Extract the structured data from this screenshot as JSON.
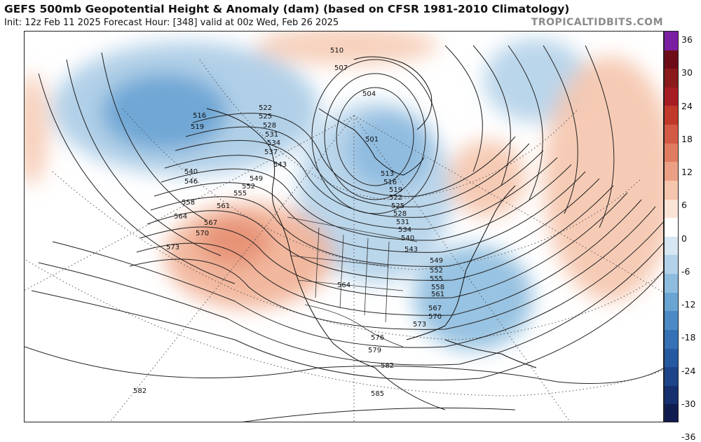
{
  "header": {
    "title": "GEFS 500mb Geopotential Height & Anomaly (dam) (based on CFSR 1981-2010 Climatology)",
    "subtitle": "Init: 12z Feb 11 2025   Forecast Hour: [348]   valid at 00z Wed, Feb 26 2025",
    "brand": "TROPICALTIDBITS.COM"
  },
  "colorbar": {
    "labels": [
      "36",
      "30",
      "24",
      "18",
      "12",
      "6",
      "0",
      "-6",
      "-12",
      "-18",
      "-24",
      "-30",
      "-36"
    ],
    "colors": [
      "#7b1fa2",
      "#6d0c17",
      "#8b1a1a",
      "#a71d24",
      "#c0392b",
      "#d35a44",
      "#e07c62",
      "#eba085",
      "#f5c5ad",
      "#fbe3d6",
      "#ffffff",
      "#d6e6f2",
      "#b3d2e9",
      "#8dbcdf",
      "#6aa4d3",
      "#4b8ac5",
      "#3571b4",
      "#265aa0",
      "#1d4489",
      "#162f6e",
      "#101c4f"
    ]
  },
  "contours": {
    "labels": [
      "510",
      "507",
      "504",
      "501",
      "513",
      "516",
      "519",
      "522",
      "525",
      "528",
      "531",
      "534",
      "537",
      "540",
      "543",
      "546",
      "549",
      "552",
      "555",
      "558",
      "561",
      "564",
      "567",
      "570",
      "573",
      "576",
      "579",
      "582",
      "585"
    ]
  }
}
